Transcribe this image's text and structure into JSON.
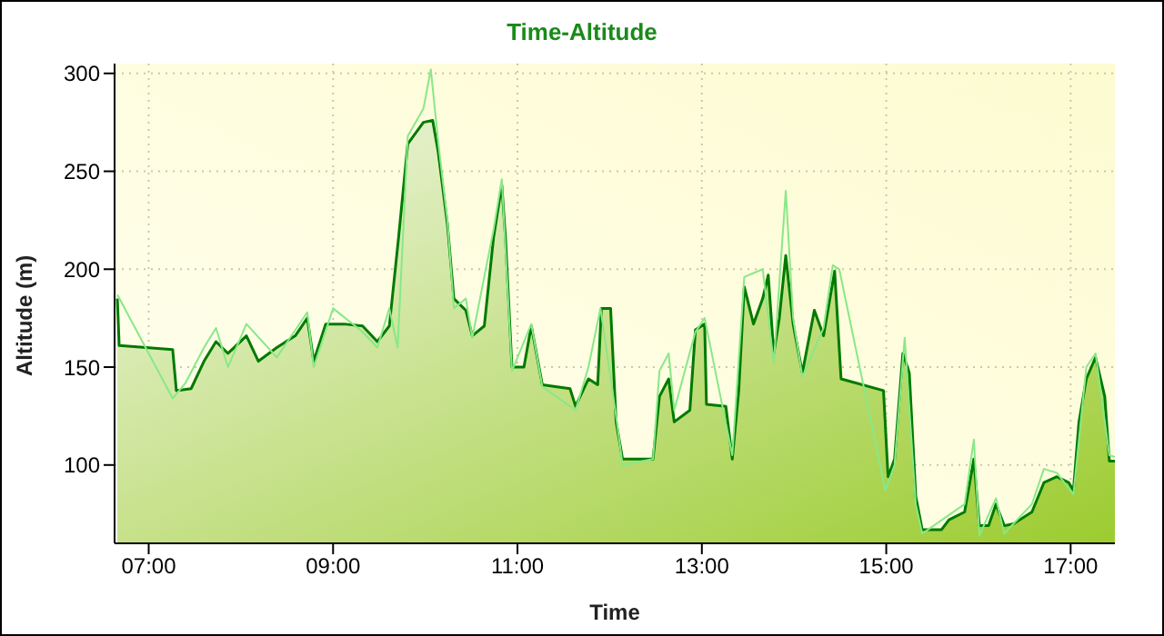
{
  "chart_data": {
    "type": "area",
    "title": "Time-Altitude",
    "xlabel": "Time",
    "ylabel": "Altitude (m)",
    "xlim": [
      6.63,
      17.48
    ],
    "ylim": [
      60,
      305
    ],
    "xticks": [
      {
        "value": 7,
        "label": "07:00"
      },
      {
        "value": 9,
        "label": "09:00"
      },
      {
        "value": 11,
        "label": "11:00"
      },
      {
        "value": 13,
        "label": "13:00"
      },
      {
        "value": 15,
        "label": "15:00"
      },
      {
        "value": 17,
        "label": "17:00"
      }
    ],
    "yticks": [
      100,
      150,
      200,
      250,
      300
    ],
    "grid": true,
    "marker": "none",
    "line_style": "solid",
    "series": [
      {
        "color": "#007a00",
        "x": [
          6.66,
          6.68,
          7.26,
          7.3,
          7.46,
          7.6,
          7.73,
          7.86,
          8.06,
          8.19,
          8.39,
          8.59,
          8.72,
          8.79,
          8.92,
          9.12,
          9.32,
          9.48,
          9.61,
          9.71,
          9.81,
          9.98,
          10.08,
          10.14,
          10.24,
          10.31,
          10.44,
          10.51,
          10.64,
          10.74,
          10.83,
          10.87,
          10.94,
          11.07,
          11.15,
          11.27,
          11.57,
          11.63,
          11.77,
          11.87,
          11.91,
          12.01,
          12.07,
          12.14,
          12.27,
          12.47,
          12.54,
          12.64,
          12.7,
          12.87,
          12.93,
          13.03,
          13.05,
          13.26,
          13.33,
          13.4,
          13.46,
          13.56,
          13.66,
          13.72,
          13.78,
          13.84,
          13.91,
          13.99,
          14.09,
          14.22,
          14.32,
          14.44,
          14.51,
          14.97,
          15.02,
          15.09,
          15.18,
          15.25,
          15.32,
          15.39,
          15.6,
          15.68,
          15.85,
          15.95,
          16.01,
          16.11,
          16.19,
          16.28,
          16.38,
          16.58,
          16.71,
          16.85,
          16.98,
          17.03,
          17.09,
          17.17,
          17.27,
          17.37,
          17.42,
          17.48
        ],
        "values": [
          185,
          161,
          159,
          138,
          139,
          153,
          163,
          157,
          166,
          153,
          160,
          166,
          175,
          153,
          172,
          172,
          171,
          163,
          171,
          216,
          264,
          275,
          276,
          260,
          223,
          185,
          179,
          166,
          171,
          216,
          243,
          216,
          150,
          150,
          171,
          141,
          139,
          130,
          144,
          141,
          180,
          180,
          122,
          103,
          103,
          103,
          135,
          144,
          122,
          128,
          169,
          172,
          131,
          130,
          103,
          138,
          191,
          172,
          185,
          197,
          157,
          175,
          207,
          172,
          147,
          179,
          166,
          199,
          144,
          138,
          94,
          103,
          157,
          147,
          84,
          67,
          67,
          72,
          76,
          103,
          69,
          69,
          80,
          69,
          70,
          76,
          91,
          94,
          91,
          87,
          122,
          144,
          155,
          135,
          102,
          102
        ]
      },
      {
        "type": "line",
        "color": "#88e888",
        "x": [
          6.66,
          7.26,
          7.4,
          7.6,
          7.73,
          7.86,
          8.06,
          8.39,
          8.72,
          8.79,
          9.0,
          9.32,
          9.48,
          9.61,
          9.7,
          9.81,
          9.98,
          10.06,
          10.14,
          10.24,
          10.31,
          10.44,
          10.51,
          10.74,
          10.83,
          10.94,
          11.15,
          11.27,
          11.63,
          11.77,
          11.9,
          12.07,
          12.14,
          12.47,
          12.54,
          12.64,
          12.7,
          12.93,
          13.03,
          13.33,
          13.46,
          13.66,
          13.78,
          13.91,
          13.99,
          14.09,
          14.32,
          14.42,
          14.49,
          14.99,
          15.09,
          15.2,
          15.32,
          15.39,
          15.85,
          15.95,
          16.01,
          16.19,
          16.28,
          16.58,
          16.71,
          16.85,
          17.03,
          17.17,
          17.27,
          17.42,
          17.48
        ],
        "values": [
          187,
          134,
          142,
          160,
          170,
          150,
          172,
          155,
          178,
          150,
          180,
          168,
          160,
          180,
          160,
          268,
          282,
          302,
          265,
          225,
          180,
          185,
          165,
          220,
          246,
          148,
          172,
          140,
          128,
          150,
          180,
          125,
          100,
          103,
          148,
          157,
          128,
          168,
          175,
          105,
          196,
          200,
          152,
          240,
          175,
          145,
          170,
          202,
          200,
          87,
          100,
          165,
          80,
          65,
          80,
          113,
          64,
          83,
          65,
          80,
          98,
          96,
          85,
          150,
          157,
          105,
          104
        ]
      }
    ]
  }
}
